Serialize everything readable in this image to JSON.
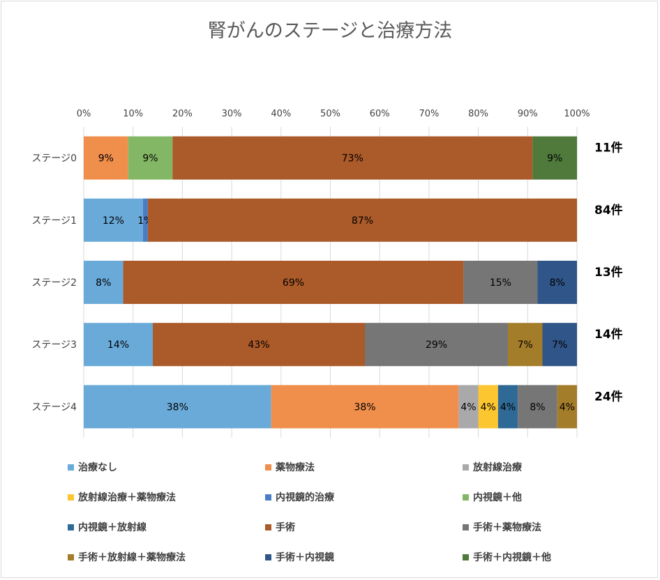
{
  "chart_data": {
    "type": "bar",
    "orientation": "horizontal",
    "stacked": "percent",
    "title": "腎がんのステージと治療方法",
    "xlim": [
      0,
      100
    ],
    "x_ticks": [
      "0%",
      "10%",
      "20%",
      "30%",
      "40%",
      "50%",
      "60%",
      "70%",
      "80%",
      "90%",
      "100%"
    ],
    "grid": true,
    "legend_position": "bottom",
    "categories": [
      "ステージ0",
      "ステージ1",
      "ステージ2",
      "ステージ3",
      "ステージ4"
    ],
    "counts": [
      "11件",
      "84件",
      "13件",
      "14件",
      "24件"
    ],
    "series": [
      {
        "name": "治療なし",
        "color": "#6aaad9",
        "values": [
          0,
          12,
          8,
          14,
          38
        ],
        "labels": [
          "",
          "12%",
          "8%",
          "14%",
          "38%"
        ]
      },
      {
        "name": "薬物療法",
        "color": "#f08e4c",
        "values": [
          9,
          0,
          0,
          0,
          38
        ],
        "labels": [
          "9%",
          "",
          "",
          "",
          "38%"
        ]
      },
      {
        "name": "放射線治療",
        "color": "#a9a9a9",
        "values": [
          0,
          0,
          0,
          0,
          4
        ],
        "labels": [
          "",
          "",
          "",
          "",
          "4%"
        ]
      },
      {
        "name": "放射線治療＋薬物療法",
        "color": "#fcc630",
        "values": [
          0,
          0,
          0,
          0,
          4
        ],
        "labels": [
          "",
          "",
          "",
          "",
          "4%"
        ]
      },
      {
        "name": "内視鏡的治療",
        "color": "#4a7ec4",
        "values": [
          0,
          1,
          0,
          0,
          0
        ],
        "labels": [
          "",
          "1%",
          "",
          "",
          ""
        ]
      },
      {
        "name": "内視鏡＋他",
        "color": "#84b765",
        "values": [
          9,
          0,
          0,
          0,
          0
        ],
        "labels": [
          "9%",
          "",
          "",
          "",
          ""
        ]
      },
      {
        "name": "内視鏡＋放射線",
        "color": "#2f6a96",
        "values": [
          0,
          0,
          0,
          0,
          4
        ],
        "labels": [
          "",
          "",
          "",
          "",
          "4%"
        ]
      },
      {
        "name": "手術",
        "color": "#ab5a29",
        "values": [
          73,
          87,
          69,
          43,
          0
        ],
        "labels": [
          "73%",
          "87%",
          "69%",
          "43%",
          ""
        ]
      },
      {
        "name": "手術＋薬物療法",
        "color": "#767676",
        "values": [
          0,
          0,
          15,
          29,
          8
        ],
        "labels": [
          "",
          "",
          "15%",
          "29%",
          "8%"
        ]
      },
      {
        "name": "手術＋放射線＋薬物療法",
        "color": "#a47d2a",
        "values": [
          0,
          0,
          0,
          7,
          4
        ],
        "labels": [
          "",
          "",
          "",
          "7%",
          "4%"
        ]
      },
      {
        "name": "手術＋内視鏡",
        "color": "#305588",
        "values": [
          0,
          0,
          8,
          7,
          0
        ],
        "labels": [
          "",
          "",
          "8%",
          "7%",
          ""
        ]
      },
      {
        "name": "手術＋内視鏡＋他",
        "color": "#507a3c",
        "values": [
          9,
          0,
          0,
          0,
          0
        ],
        "labels": [
          "9%",
          "",
          "",
          "",
          ""
        ]
      }
    ]
  }
}
